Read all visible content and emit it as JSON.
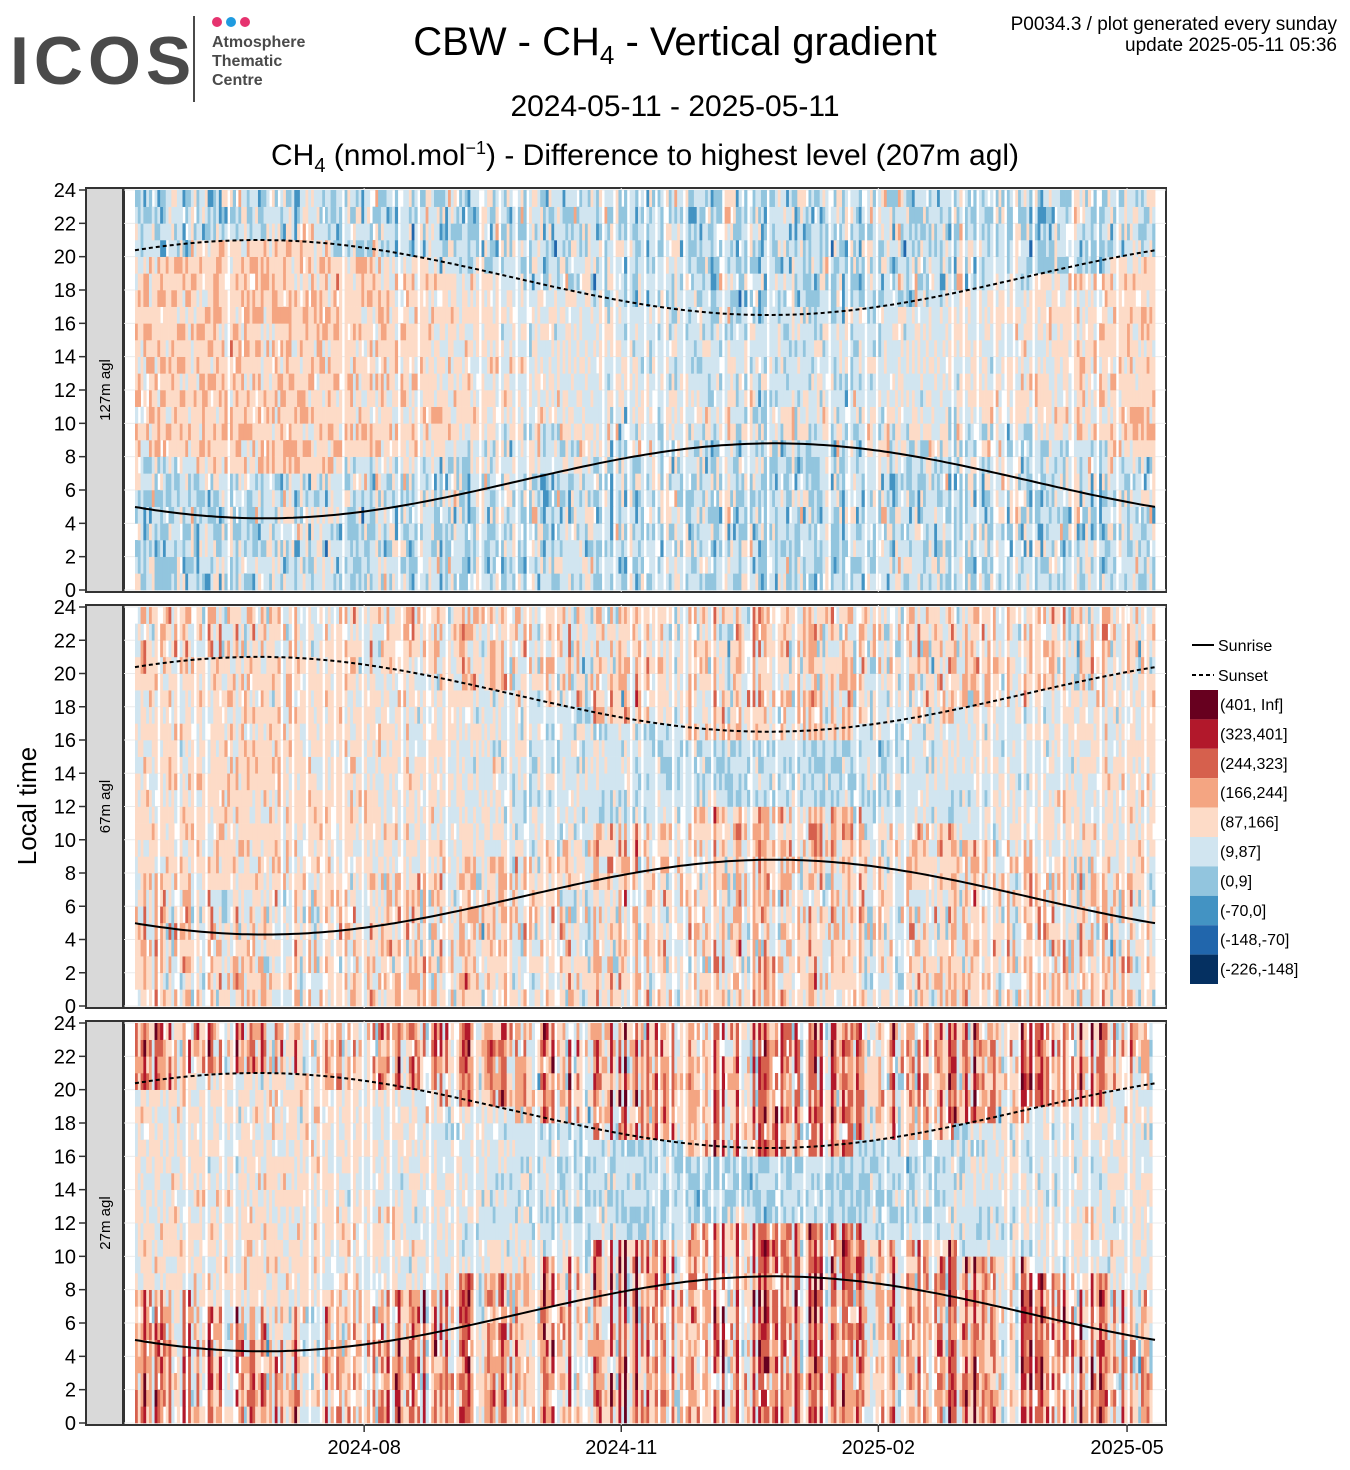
{
  "logo": {
    "wordmark": "ICOS",
    "line1": "Atmosphere",
    "line2": "Thematic",
    "line3": "Centre",
    "dot_colors": [
      "#e6336f",
      "#1f9be0",
      "#e6336f"
    ]
  },
  "header": {
    "title_prefix": "CBW - CH",
    "title_sub": "4",
    "title_suffix": " - Vertical gradient",
    "date_range": "2024-05-11 - 2025-05-11",
    "subtitle_a": "CH",
    "subtitle_sub": "4",
    "subtitle_b": " (nmol.mol",
    "subtitle_sup": "−1",
    "subtitle_c": ") - Difference to highest level (207m agl)",
    "info_line1": "P0034.3 / plot generated every sunday",
    "info_line2": "update  2025-05-11 05:36"
  },
  "chart_data": {
    "type": "heatmap",
    "ylabel": "Local time",
    "ylim": [
      0,
      24
    ],
    "yticks": [
      "0",
      "2",
      "4",
      "6",
      "8",
      "10",
      "12",
      "14",
      "16",
      "18",
      "20",
      "22",
      "24"
    ],
    "x_range": [
      "2024-05-11",
      "2025-05-11"
    ],
    "xticks": [
      {
        "date": "2024-08-01",
        "label": "2024-08"
      },
      {
        "date": "2024-11-01",
        "label": "2024-11"
      },
      {
        "date": "2025-02-01",
        "label": "2025-02"
      },
      {
        "date": "2025-05-01",
        "label": "2025-05"
      }
    ],
    "panels": [
      {
        "label": "127m agl",
        "low_intensity": 0.4,
        "night_shift": -0.7,
        "day_shift": -1.4
      },
      {
        "label": "67m agl",
        "low_intensity": 1.5,
        "night_shift": 1.0,
        "day_shift": -1.1
      },
      {
        "label": "27m agl",
        "low_intensity": 2.4,
        "night_shift": 2.2,
        "day_shift": -0.9
      }
    ],
    "sunrise": {
      "name": "Sunrise",
      "min_hour": 4.3,
      "min_date": "2024-06-21",
      "max_hour": 8.8,
      "max_date": "2024-12-26"
    },
    "sunset": {
      "name": "Sunset",
      "max_hour": 21.0,
      "max_date": "2024-06-24",
      "min_hour": 16.5,
      "min_date": "2024-12-18"
    },
    "legend": [
      {
        "label": "(401, Inf]",
        "color": "#67001f"
      },
      {
        "label": "(323,401]",
        "color": "#b2182b"
      },
      {
        "label": "(244,323]",
        "color": "#d6604d"
      },
      {
        "label": "(166,244]",
        "color": "#f4a582"
      },
      {
        "label": "(87,166]",
        "color": "#fddbc7"
      },
      {
        "label": "(9,87]",
        "color": "#d1e5f0"
      },
      {
        "label": "(0,9]",
        "color": "#92c5de"
      },
      {
        "label": "(-70,0]",
        "color": "#4393c3"
      },
      {
        "label": "(-148,-70]",
        "color": "#2166ac"
      },
      {
        "label": "(-226,-148]",
        "color": "#053061"
      }
    ]
  }
}
